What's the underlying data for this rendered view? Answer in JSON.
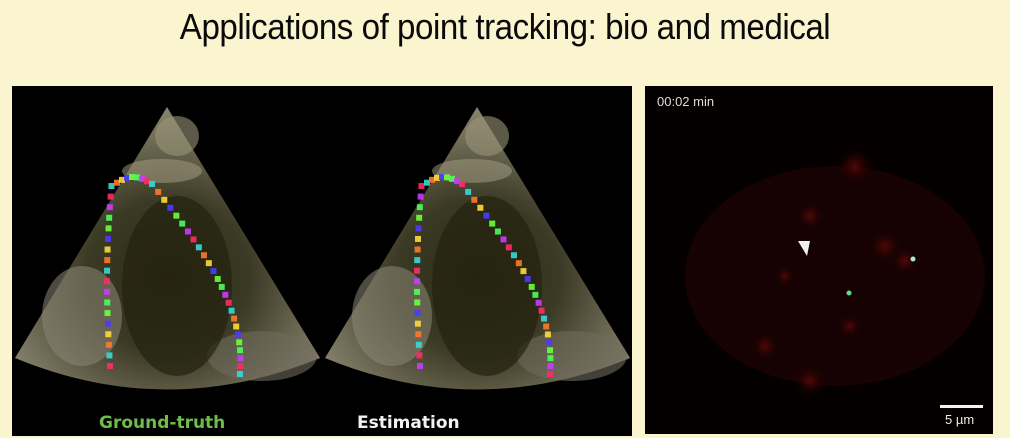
{
  "slide": {
    "title": "Applications of point tracking: bio and medical",
    "background_color": "#fbf5cf"
  },
  "ultrasound_panel": {
    "views": [
      {
        "label": "Ground-truth",
        "label_color": "#6dbd4a"
      },
      {
        "label": "Estimation",
        "label_color": "#f2f2f2"
      }
    ]
  },
  "microscopy_panel": {
    "timestamp": "00:02 min",
    "scale_bar_label": "5 µm",
    "markers": [
      {
        "type": "arrowhead",
        "color": "#f0f0f0"
      },
      {
        "type": "particle",
        "color": "#9ff0c8"
      },
      {
        "type": "particle",
        "color": "#5ee08a"
      }
    ]
  }
}
